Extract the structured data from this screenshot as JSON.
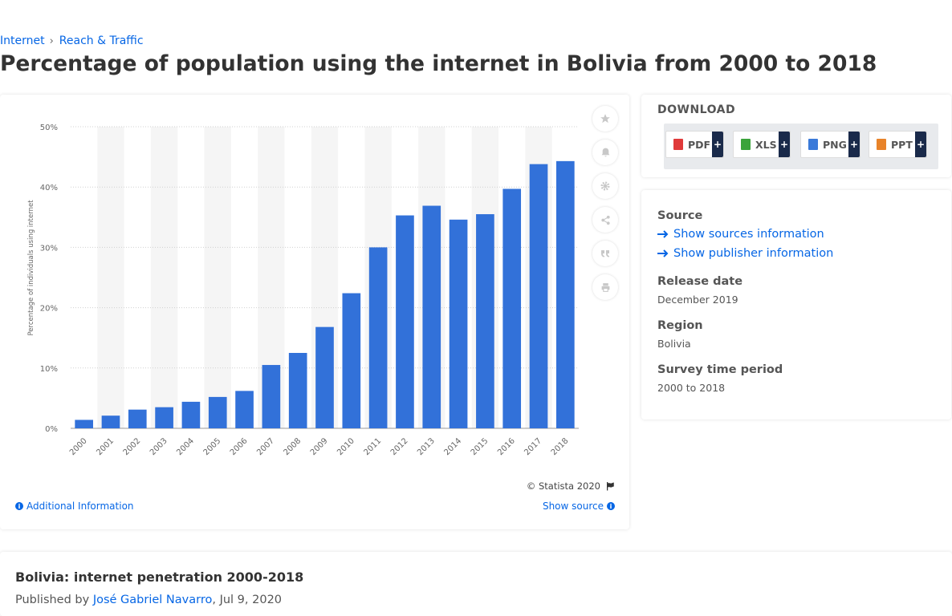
{
  "breadcrumb": {
    "items": [
      "Internet",
      "Reach & Traffic"
    ],
    "separator": "›"
  },
  "page_title": "Percentage of population using the internet in Bolivia from 2000 to 2018",
  "chart_card": {
    "copyright": "© Statista 2020",
    "additional_info": "Additional Information",
    "show_source": "Show source",
    "toolbar_icons": [
      "star-icon",
      "bell-icon",
      "gear-icon",
      "share-icon",
      "quote-icon",
      "print-icon"
    ]
  },
  "chart_data": {
    "type": "bar",
    "ylabel": "Percentage of individuals using internet",
    "xlabel": "",
    "ylim": [
      0,
      50
    ],
    "yticks": [
      0,
      10,
      20,
      30,
      40,
      50
    ],
    "ytick_labels": [
      "0%",
      "10%",
      "20%",
      "30%",
      "40%",
      "50%"
    ],
    "grid": true,
    "categories": [
      "2000",
      "2001",
      "2002",
      "2003",
      "2004",
      "2005",
      "2006",
      "2007",
      "2008",
      "2009",
      "2010",
      "2011",
      "2012",
      "2013",
      "2014",
      "2015",
      "2016",
      "2017",
      "2018"
    ],
    "values": [
      1.4,
      2.1,
      3.1,
      3.5,
      4.4,
      5.2,
      6.2,
      10.5,
      12.5,
      16.8,
      22.4,
      30.0,
      35.3,
      36.9,
      34.6,
      35.5,
      39.7,
      43.8,
      44.3
    ],
    "bar_color": "#3271d9",
    "stripe_color": "#f5f5f5"
  },
  "download": {
    "title": "DOWNLOAD",
    "buttons": [
      {
        "label": "PDF",
        "icon": "pdf-icon",
        "color": "#e03a3a"
      },
      {
        "label": "XLS",
        "icon": "xls-icon",
        "color": "#3aa33a"
      },
      {
        "label": "PNG",
        "icon": "png-icon",
        "color": "#3a7ad9"
      },
      {
        "label": "PPT",
        "icon": "ppt-icon",
        "color": "#e8832a"
      }
    ],
    "plus": "+"
  },
  "meta": {
    "source_heading": "Source",
    "show_sources": "Show sources information",
    "show_publisher": "Show publisher information",
    "release_heading": "Release date",
    "release_value": "December 2019",
    "region_heading": "Region",
    "region_value": "Bolivia",
    "period_heading": "Survey time period",
    "period_value": "2000 to 2018"
  },
  "footer": {
    "title": "Bolivia: internet penetration 2000-2018",
    "published_by": "Published by",
    "author": "José Gabriel Navarro",
    "date": ", Jul 9, 2020"
  },
  "colors": {
    "accent": "#0666e5",
    "bar": "#3271d9",
    "dark_button": "#1a2a4a"
  }
}
